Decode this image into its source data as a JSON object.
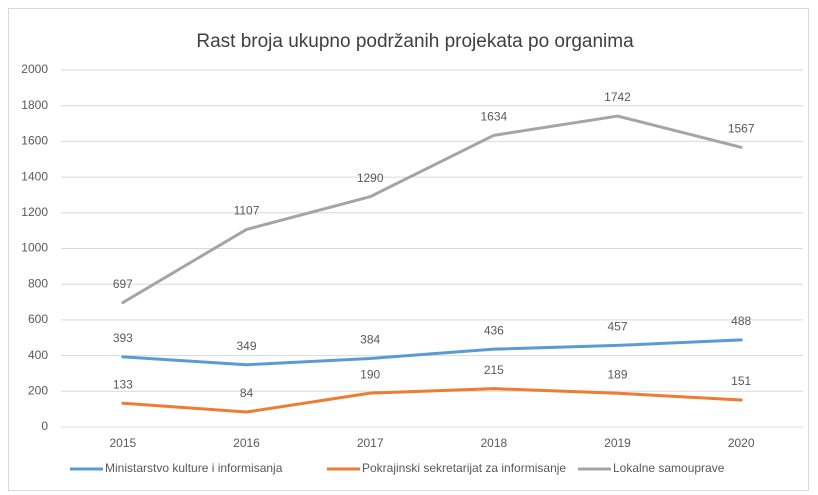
{
  "chart_data": {
    "type": "line",
    "title": "Rast broja ukupno podržanih projekata po organima",
    "categories": [
      "2015",
      "2016",
      "2017",
      "2018",
      "2019",
      "2020"
    ],
    "series": [
      {
        "name": "Ministarstvo kulture i informisanja",
        "color": "#5b9bd5",
        "values": [
          393,
          349,
          384,
          436,
          457,
          488
        ]
      },
      {
        "name": "Pokrajinski sekretarijat za informisanje",
        "color": "#ed7d31",
        "values": [
          133,
          84,
          190,
          215,
          189,
          151
        ]
      },
      {
        "name": "Lokalne samouprave",
        "color": "#a5a5a5",
        "values": [
          697,
          1107,
          1290,
          1634,
          1742,
          1567
        ]
      }
    ],
    "ylim": [
      0,
      2000
    ],
    "yticks": [
      0,
      200,
      400,
      600,
      800,
      1000,
      1200,
      1400,
      1600,
      1800,
      2000
    ],
    "grid": true,
    "legend": "bottom"
  }
}
